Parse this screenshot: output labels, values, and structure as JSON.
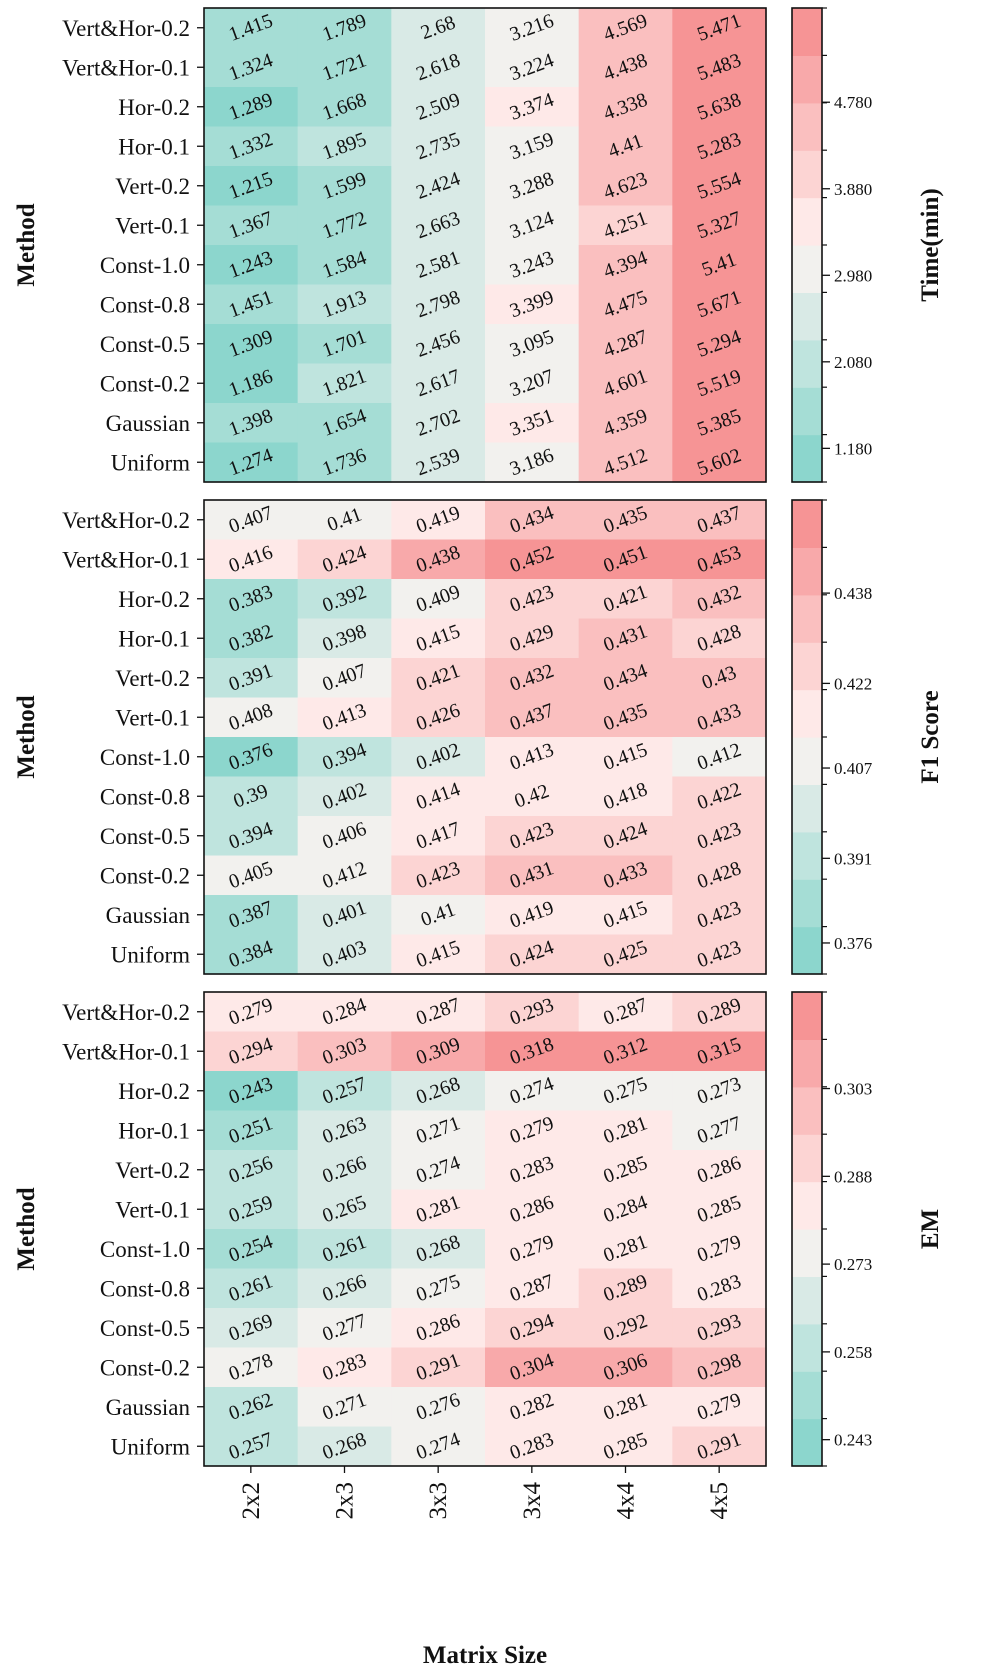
{
  "colors": {
    "low": "#7fd3c9",
    "mid": "#fff4f2",
    "high": "#f5898b"
  },
  "chart_data": [
    {
      "type": "heatmap",
      "ylabel": "Method",
      "xlabel": "Matrix Size",
      "colorbar_label": "Time(min)",
      "colorbar_ticks": [
        "1.180",
        "2.080",
        "2.980",
        "3.880",
        "4.780"
      ],
      "vmin": 0.83,
      "vmax": 5.76,
      "categories": [
        "2x2",
        "2x3",
        "3x3",
        "3x4",
        "4x4",
        "4x5"
      ],
      "rows": [
        "Vert&Hor-0.2",
        "Vert&Hor-0.1",
        "Hor-0.2",
        "Hor-0.1",
        "Vert-0.2",
        "Vert-0.1",
        "Const-1.0",
        "Const-0.8",
        "Const-0.5",
        "Const-0.2",
        "Gaussian",
        "Uniform"
      ],
      "values": [
        [
          "1.415",
          "1.789",
          "2.68",
          "3.216",
          "4.569",
          "5.471"
        ],
        [
          "1.324",
          "1.721",
          "2.618",
          "3.224",
          "4.438",
          "5.483"
        ],
        [
          "1.289",
          "1.668",
          "2.509",
          "3.374",
          "4.338",
          "5.638"
        ],
        [
          "1.332",
          "1.895",
          "2.735",
          "3.159",
          "4.41",
          "5.283"
        ],
        [
          "1.215",
          "1.599",
          "2.424",
          "3.288",
          "4.623",
          "5.554"
        ],
        [
          "1.367",
          "1.772",
          "2.663",
          "3.124",
          "4.251",
          "5.327"
        ],
        [
          "1.243",
          "1.584",
          "2.581",
          "3.243",
          "4.394",
          "5.41"
        ],
        [
          "1.451",
          "1.913",
          "2.798",
          "3.399",
          "4.475",
          "5.671"
        ],
        [
          "1.309",
          "1.701",
          "2.456",
          "3.095",
          "4.287",
          "5.294"
        ],
        [
          "1.186",
          "1.821",
          "2.617",
          "3.207",
          "4.601",
          "5.519"
        ],
        [
          "1.398",
          "1.654",
          "2.702",
          "3.351",
          "4.359",
          "5.385"
        ],
        [
          "1.274",
          "1.736",
          "2.539",
          "3.186",
          "4.512",
          "5.602"
        ]
      ]
    },
    {
      "type": "heatmap",
      "ylabel": "Method",
      "xlabel": "Matrix Size",
      "colorbar_label": "F1 Score",
      "colorbar_ticks": [
        "0.376",
        "0.391",
        "0.407",
        "0.422",
        "0.438"
      ],
      "vmin": 0.3705,
      "vmax": 0.4545,
      "categories": [
        "2x2",
        "2x3",
        "3x3",
        "3x4",
        "4x4",
        "4x5"
      ],
      "rows": [
        "Vert&Hor-0.2",
        "Vert&Hor-0.1",
        "Hor-0.2",
        "Hor-0.1",
        "Vert-0.2",
        "Vert-0.1",
        "Const-1.0",
        "Const-0.8",
        "Const-0.5",
        "Const-0.2",
        "Gaussian",
        "Uniform"
      ],
      "values": [
        [
          "0.407",
          "0.41",
          "0.419",
          "0.434",
          "0.435",
          "0.437"
        ],
        [
          "0.416",
          "0.424",
          "0.438",
          "0.452",
          "0.451",
          "0.453"
        ],
        [
          "0.383",
          "0.392",
          "0.409",
          "0.423",
          "0.421",
          "0.432"
        ],
        [
          "0.382",
          "0.398",
          "0.415",
          "0.429",
          "0.431",
          "0.428"
        ],
        [
          "0.391",
          "0.407",
          "0.421",
          "0.432",
          "0.434",
          "0.43"
        ],
        [
          "0.408",
          "0.413",
          "0.426",
          "0.437",
          "0.435",
          "0.433"
        ],
        [
          "0.376",
          "0.394",
          "0.402",
          "0.413",
          "0.415",
          "0.412"
        ],
        [
          "0.39",
          "0.402",
          "0.414",
          "0.42",
          "0.418",
          "0.422"
        ],
        [
          "0.394",
          "0.406",
          "0.417",
          "0.423",
          "0.424",
          "0.423"
        ],
        [
          "0.405",
          "0.412",
          "0.423",
          "0.431",
          "0.433",
          "0.428"
        ],
        [
          "0.387",
          "0.401",
          "0.41",
          "0.419",
          "0.415",
          "0.423"
        ],
        [
          "0.384",
          "0.403",
          "0.415",
          "0.424",
          "0.425",
          "0.423"
        ]
      ]
    },
    {
      "type": "heatmap",
      "ylabel": "Method",
      "xlabel": "Matrix Size",
      "colorbar_label": "EM",
      "colorbar_ticks": [
        "0.243",
        "0.258",
        "0.273",
        "0.288",
        "0.303"
      ],
      "vmin": 0.2385,
      "vmax": 0.3195,
      "categories": [
        "2x2",
        "2x3",
        "3x3",
        "3x4",
        "4x4",
        "4x5"
      ],
      "rows": [
        "Vert&Hor-0.2",
        "Vert&Hor-0.1",
        "Hor-0.2",
        "Hor-0.1",
        "Vert-0.2",
        "Vert-0.1",
        "Const-1.0",
        "Const-0.8",
        "Const-0.5",
        "Const-0.2",
        "Gaussian",
        "Uniform"
      ],
      "values": [
        [
          "0.279",
          "0.284",
          "0.287",
          "0.293",
          "0.287",
          "0.289"
        ],
        [
          "0.294",
          "0.303",
          "0.309",
          "0.318",
          "0.312",
          "0.315"
        ],
        [
          "0.243",
          "0.257",
          "0.268",
          "0.274",
          "0.275",
          "0.273"
        ],
        [
          "0.251",
          "0.263",
          "0.271",
          "0.279",
          "0.281",
          "0.277"
        ],
        [
          "0.256",
          "0.266",
          "0.274",
          "0.283",
          "0.285",
          "0.286"
        ],
        [
          "0.259",
          "0.265",
          "0.281",
          "0.286",
          "0.284",
          "0.285"
        ],
        [
          "0.254",
          "0.261",
          "0.268",
          "0.279",
          "0.281",
          "0.279"
        ],
        [
          "0.261",
          "0.266",
          "0.275",
          "0.287",
          "0.289",
          "0.283"
        ],
        [
          "0.269",
          "0.277",
          "0.286",
          "0.294",
          "0.292",
          "0.293"
        ],
        [
          "0.278",
          "0.283",
          "0.291",
          "0.304",
          "0.306",
          "0.298"
        ],
        [
          "0.262",
          "0.271",
          "0.276",
          "0.282",
          "0.281",
          "0.279"
        ],
        [
          "0.257",
          "0.268",
          "0.274",
          "0.283",
          "0.285",
          "0.291"
        ]
      ]
    }
  ]
}
